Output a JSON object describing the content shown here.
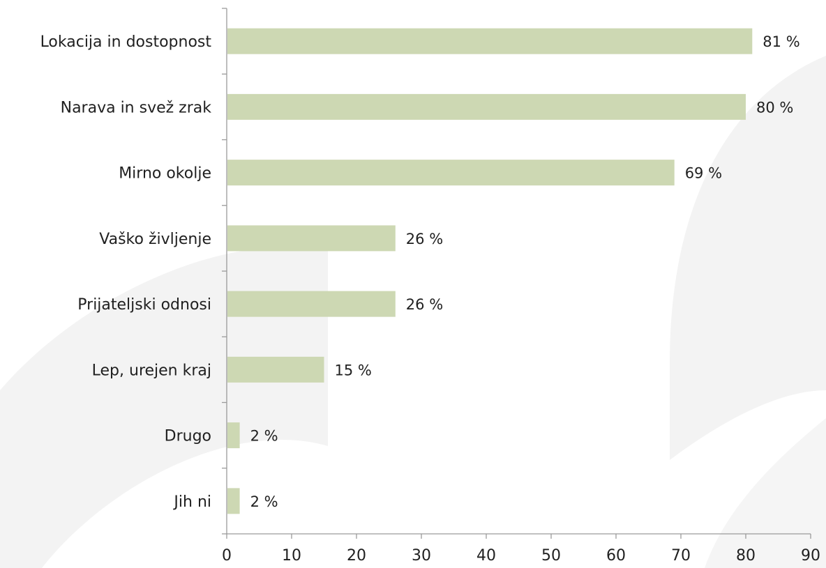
{
  "chart_data": {
    "type": "bar",
    "orientation": "horizontal",
    "categories": [
      "Lokacija in dostopnost",
      "Narava in svež zrak",
      "Mirno okolje",
      "Vaško življenje",
      "Prijateljski odnosi",
      "Lep, urejen kraj",
      "Drugo",
      "Jih ni"
    ],
    "values": [
      81,
      80,
      69,
      26,
      26,
      15,
      2,
      2
    ],
    "value_labels": [
      "81 %",
      "80 %",
      "69 %",
      "26 %",
      "26 %",
      "15 %",
      "2 %",
      "2 %"
    ],
    "xlim": [
      0,
      90
    ],
    "xticks": [
      0,
      10,
      20,
      30,
      40,
      50,
      60,
      70,
      80,
      90
    ],
    "grid": false,
    "bar_color": "#cdd8b3",
    "background_watermark_color": "#f1f1f1"
  }
}
